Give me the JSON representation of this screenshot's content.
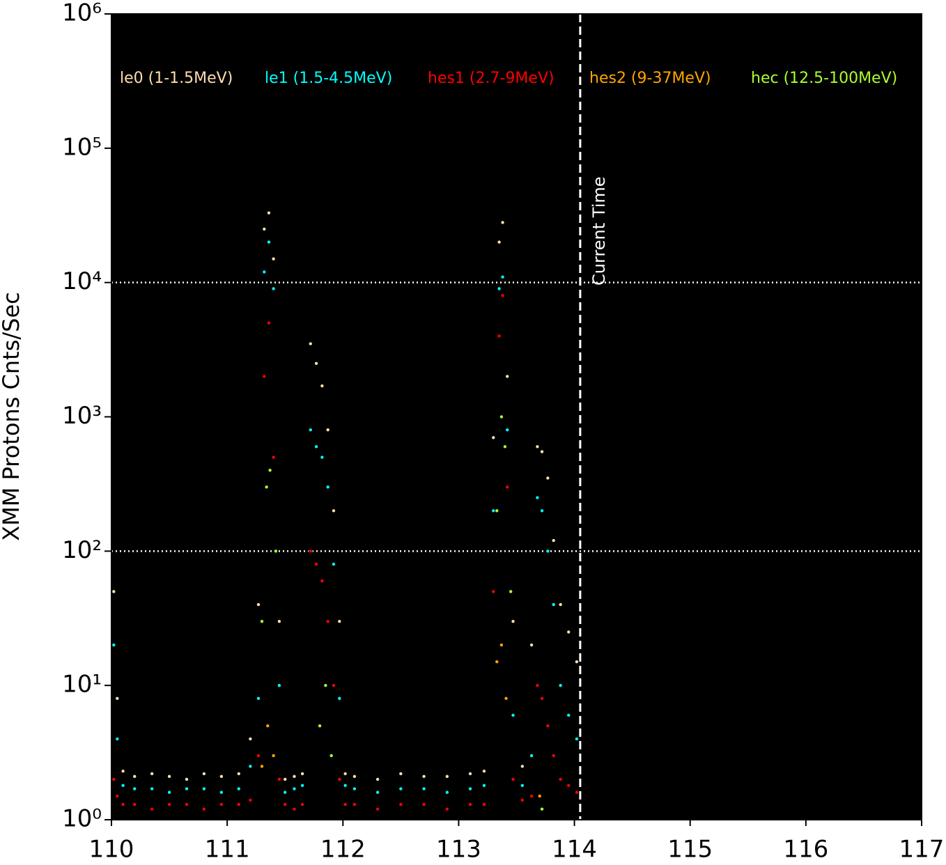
{
  "chart_data": {
    "type": "scatter",
    "y_label": "XMM Protons Cnts/Sec",
    "xlim": [
      110,
      117
    ],
    "xticks": [
      110,
      111,
      112,
      113,
      114,
      115,
      116,
      117
    ],
    "ylim": [
      1,
      1000000
    ],
    "yticks": [
      {
        "value": 1,
        "label": "10⁰"
      },
      {
        "value": 10,
        "label": "10¹"
      },
      {
        "value": 100,
        "label": "10²"
      },
      {
        "value": 1000,
        "label": "10³"
      },
      {
        "value": 10000,
        "label": "10⁴"
      },
      {
        "value": 100000,
        "label": "10⁵"
      },
      {
        "value": 1000000,
        "label": "10⁶"
      }
    ],
    "log_y": true,
    "hlines": [
      100,
      10000
    ],
    "vline": {
      "x": 114.05,
      "label": "Current Time"
    },
    "series": [
      {
        "name": "le0 (1-1.5MeV)",
        "color": "#ffdead",
        "x": [
          110.02,
          110.05,
          110.1,
          110.2,
          110.35,
          110.5,
          110.65,
          110.8,
          110.95,
          111.1,
          111.2,
          111.27,
          111.32,
          111.36,
          111.4,
          111.45,
          111.5,
          111.58,
          111.65,
          111.72,
          111.77,
          111.82,
          111.87,
          111.92,
          111.97,
          112.02,
          112.1,
          112.3,
          112.5,
          112.7,
          112.9,
          113.1,
          113.22,
          113.3,
          113.35,
          113.38,
          113.42,
          113.47,
          113.55,
          113.63,
          113.68,
          113.72,
          113.77,
          113.82,
          113.88,
          113.95,
          114.02
        ],
        "values": [
          50,
          8,
          2.3,
          2.1,
          2.2,
          2.1,
          2.0,
          2.2,
          2.1,
          2.2,
          4,
          40,
          25000,
          33000,
          15000,
          30,
          2.0,
          2.1,
          2.2,
          3500,
          2500,
          1700,
          800,
          200,
          30,
          2.2,
          2.1,
          2.0,
          2.2,
          2.1,
          2.1,
          2.2,
          2.3,
          700,
          20000,
          28000,
          2000,
          30,
          2.5,
          20,
          600,
          550,
          350,
          120,
          40,
          25,
          15
        ]
      },
      {
        "name": "le1 (1.5-4.5MeV)",
        "color": "#00ffff",
        "x": [
          110.02,
          110.05,
          110.1,
          110.2,
          110.35,
          110.5,
          110.65,
          110.8,
          110.95,
          111.1,
          111.2,
          111.27,
          111.32,
          111.36,
          111.4,
          111.45,
          111.5,
          111.58,
          111.65,
          111.72,
          111.77,
          111.82,
          111.87,
          111.92,
          111.97,
          112.02,
          112.1,
          112.3,
          112.5,
          112.7,
          112.9,
          113.1,
          113.22,
          113.3,
          113.35,
          113.38,
          113.42,
          113.47,
          113.55,
          113.63,
          113.68,
          113.72,
          113.77,
          113.82,
          113.88,
          113.95,
          114.02
        ],
        "values": [
          20,
          4,
          1.8,
          1.7,
          1.7,
          1.6,
          1.7,
          1.7,
          1.6,
          1.7,
          2.5,
          8,
          12000,
          20000,
          9000,
          10,
          1.6,
          1.7,
          1.8,
          800,
          600,
          500,
          300,
          80,
          8,
          1.8,
          1.7,
          1.6,
          1.7,
          1.7,
          1.6,
          1.7,
          1.8,
          200,
          9000,
          11000,
          800,
          6,
          1.8,
          3,
          250,
          200,
          100,
          40,
          10,
          6,
          4
        ]
      },
      {
        "name": "hes1 (2.7-9MeV)",
        "color": "#ff0000",
        "x": [
          110.02,
          110.05,
          110.1,
          110.2,
          110.35,
          110.5,
          110.65,
          110.8,
          110.95,
          111.1,
          111.2,
          111.27,
          111.32,
          111.36,
          111.4,
          111.45,
          111.5,
          111.58,
          111.65,
          111.72,
          111.77,
          111.82,
          111.87,
          111.92,
          111.97,
          112.02,
          112.1,
          112.3,
          112.5,
          112.7,
          112.9,
          113.1,
          113.22,
          113.3,
          113.35,
          113.38,
          113.42,
          113.47,
          113.55,
          113.63,
          113.68,
          113.72,
          113.77,
          113.82,
          113.88,
          113.95,
          114.02
        ],
        "values": [
          2,
          1.5,
          1.3,
          1.3,
          1.2,
          1.3,
          1.3,
          1.2,
          1.3,
          1.3,
          1.4,
          3,
          2000,
          5000,
          500,
          2,
          1.3,
          1.2,
          1.3,
          100,
          80,
          60,
          30,
          10,
          2,
          1.3,
          1.3,
          1.2,
          1.3,
          1.3,
          1.2,
          1.3,
          1.3,
          50,
          4000,
          8000,
          300,
          2,
          1.4,
          1.5,
          10,
          8,
          5,
          3,
          2,
          1.8,
          1.6
        ]
      },
      {
        "name": "hes2 (9-37MeV)",
        "color": "#ffa500",
        "x": [
          111.3,
          111.35,
          111.4,
          113.33,
          113.37,
          113.41,
          113.7
        ],
        "values": [
          2.5,
          5,
          3,
          15,
          20,
          8,
          1.5
        ]
      },
      {
        "name": "hec (12.5-100MeV)",
        "color": "#adff2f",
        "x": [
          111.3,
          111.34,
          111.37,
          111.42,
          111.8,
          111.85,
          111.9,
          113.33,
          113.37,
          113.4,
          113.45,
          113.72
        ],
        "values": [
          30,
          300,
          400,
          100,
          5,
          10,
          3,
          200,
          1000,
          600,
          50,
          1.2
        ]
      }
    ]
  }
}
